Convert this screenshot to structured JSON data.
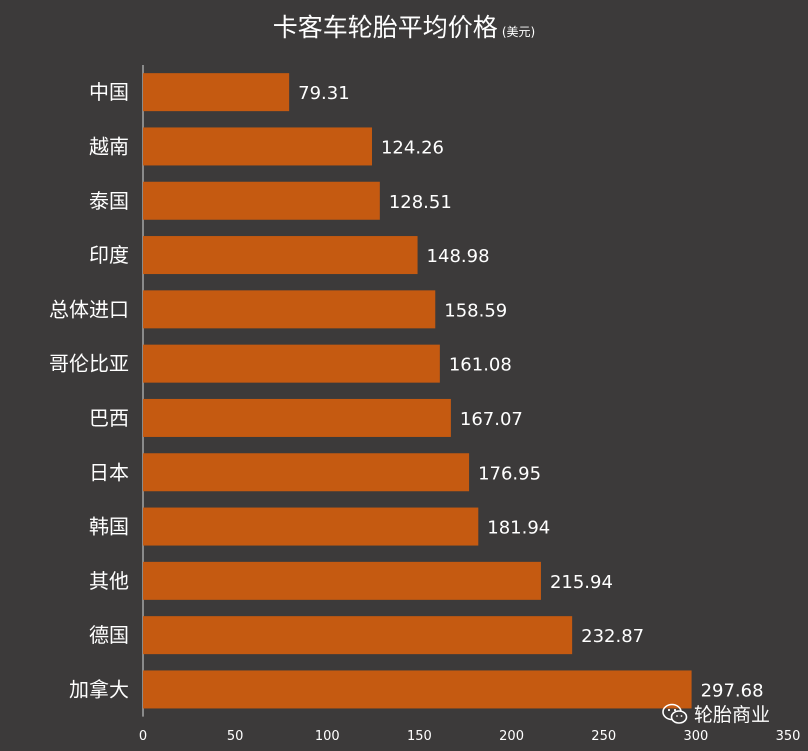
{
  "chart_data": {
    "type": "bar",
    "orientation": "horizontal",
    "title": "卡客车轮胎平均价格",
    "unit": "(美元)",
    "categories": [
      "中国",
      "越南",
      "泰国",
      "印度",
      "总体进口",
      "哥伦比亚",
      "巴西",
      "日本",
      "韩国",
      "其他",
      "德国",
      "加拿大"
    ],
    "values": [
      79.31,
      124.26,
      128.51,
      148.98,
      158.59,
      161.08,
      167.07,
      176.95,
      181.94,
      215.94,
      232.87,
      297.68
    ],
    "value_labels": [
      "79.31",
      "124.26",
      "128.51",
      "148.98",
      "158.59",
      "161.08",
      "167.07",
      "176.95",
      "181.94",
      "215.94",
      "232.87",
      "297.68"
    ],
    "xlim": [
      0,
      350
    ],
    "xticks": [
      "0",
      "50",
      "100",
      "150",
      "200",
      "250",
      "300",
      "350"
    ],
    "xlabel": "",
    "ylabel": "",
    "grid": false,
    "bar_color": "#c55a11",
    "background_color": "#3c3a3a",
    "text_color": "#ffffff"
  },
  "watermark": {
    "icon": "wechat-icon",
    "text": "轮胎商业"
  }
}
